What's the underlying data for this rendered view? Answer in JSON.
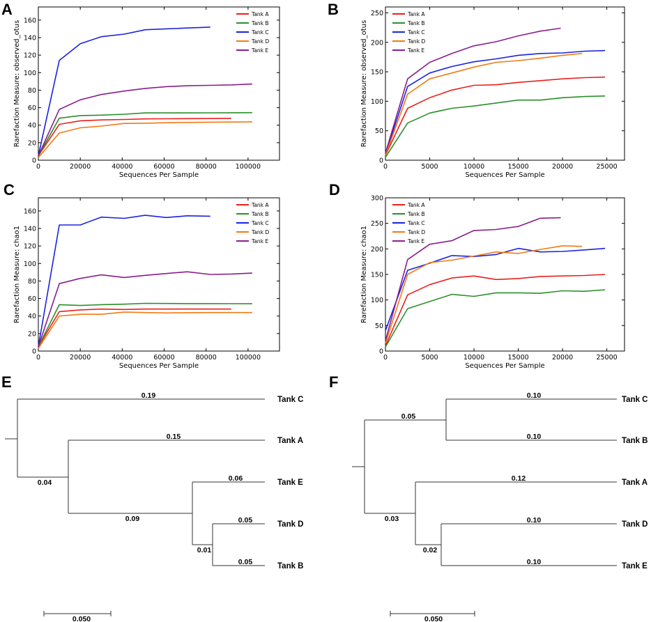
{
  "chart_data": [
    {
      "panel": "A",
      "type": "line",
      "xlabel": "Sequences Per Sample",
      "ylabel": "Rarefaction Measure: observed_otus",
      "xlim": [
        0,
        115000
      ],
      "ylim": [
        0,
        175
      ],
      "xticks": [
        0,
        20000,
        40000,
        60000,
        80000,
        100000
      ],
      "yticks": [
        0,
        20,
        40,
        60,
        80,
        100,
        120,
        140,
        160
      ],
      "legend_position": "top-right",
      "series": [
        {
          "name": "Tank A",
          "color": "#e8201c",
          "x": [
            0,
            10000,
            20000,
            30000,
            41000,
            51000,
            61000,
            71000,
            82000,
            92000
          ],
          "y": [
            5,
            41,
            45,
            46,
            46.5,
            47.2,
            47.3,
            47.5,
            47.6,
            47.8
          ]
        },
        {
          "name": "Tank B",
          "color": "#2a8f2a",
          "x": [
            0,
            10000,
            20000,
            30000,
            41000,
            51000,
            61000,
            71000,
            82000,
            92000,
            102000
          ],
          "y": [
            5,
            48,
            51,
            51.5,
            52.5,
            54,
            54,
            54,
            54.1,
            54.2,
            54.3
          ]
        },
        {
          "name": "Tank C",
          "color": "#1a22e0",
          "x": [
            0,
            10000,
            20000,
            30000,
            41000,
            51000,
            61000,
            71000,
            82000
          ],
          "y": [
            5,
            114,
            133,
            141,
            144,
            149,
            150,
            151,
            152
          ]
        },
        {
          "name": "Tank D",
          "color": "#f07a14",
          "x": [
            0,
            10000,
            20000,
            30000,
            41000,
            51000,
            61000,
            71000,
            82000,
            92000,
            102000
          ],
          "y": [
            3,
            31,
            37,
            39,
            42,
            42.2,
            42.8,
            43.1,
            43.4,
            43.6,
            43.8
          ]
        },
        {
          "name": "Tank E",
          "color": "#8a1d8c",
          "x": [
            0,
            10000,
            20000,
            30000,
            41000,
            51000,
            61000,
            71000,
            82000,
            92000,
            102000
          ],
          "y": [
            5,
            58,
            69,
            75,
            79,
            82,
            84,
            85,
            85.5,
            86,
            87
          ]
        }
      ]
    },
    {
      "panel": "B",
      "type": "line",
      "xlabel": "Sequences Per Sample",
      "ylabel": "Rarefaction Measure: observed_otus",
      "xlim": [
        0,
        27000
      ],
      "ylim": [
        0,
        260
      ],
      "xticks": [
        0,
        5000,
        10000,
        15000,
        20000,
        25000
      ],
      "yticks": [
        0,
        50,
        100,
        150,
        200,
        250
      ],
      "legend_position": "top-left",
      "series": [
        {
          "name": "Tank A",
          "color": "#e8201c",
          "x": [
            0,
            2500,
            5000,
            7500,
            10000,
            12500,
            15000,
            17500,
            20000,
            22500,
            24800
          ],
          "y": [
            8,
            88,
            106,
            119,
            127,
            128,
            132,
            135,
            138,
            140,
            141
          ]
        },
        {
          "name": "Tank B",
          "color": "#2a8f2a",
          "x": [
            0,
            2500,
            5000,
            7500,
            10000,
            12500,
            15000,
            17500,
            20000,
            22500,
            24800
          ],
          "y": [
            5,
            63,
            80,
            88,
            92,
            97,
            102,
            102,
            106,
            108,
            109
          ]
        },
        {
          "name": "Tank C",
          "color": "#1a22e0",
          "x": [
            0,
            2500,
            5000,
            7500,
            10000,
            12500,
            15000,
            17500,
            20000,
            22500,
            24800
          ],
          "y": [
            10,
            125,
            148,
            159,
            167,
            172,
            178,
            181,
            182,
            185,
            186
          ]
        },
        {
          "name": "Tank D",
          "color": "#f07a14",
          "x": [
            0,
            2500,
            5000,
            7500,
            10000,
            12500,
            15000,
            17500,
            20000,
            22200
          ],
          "y": [
            8,
            112,
            138,
            148,
            158,
            166,
            169,
            173,
            178,
            181
          ]
        },
        {
          "name": "Tank E",
          "color": "#8a1d8c",
          "x": [
            0,
            2500,
            5000,
            7500,
            10000,
            12500,
            15000,
            17500,
            19800
          ],
          "y": [
            12,
            138,
            166,
            181,
            194,
            201,
            211,
            219,
            224
          ]
        }
      ]
    },
    {
      "panel": "C",
      "type": "line",
      "xlabel": "Sequences Per Sample",
      "ylabel": "Rarefaction Measure: chao1",
      "xlim": [
        0,
        115000
      ],
      "ylim": [
        0,
        175
      ],
      "xticks": [
        0,
        20000,
        40000,
        60000,
        80000,
        100000
      ],
      "yticks": [
        0,
        20,
        40,
        60,
        80,
        100,
        120,
        140,
        160
      ],
      "legend_position": "top-right",
      "series": [
        {
          "name": "Tank A",
          "color": "#e8201c",
          "x": [
            0,
            10000,
            20000,
            30000,
            41000,
            51000,
            61000,
            71000,
            82000,
            92000
          ],
          "y": [
            5,
            45,
            47,
            48,
            47.5,
            48,
            48,
            48,
            48,
            48
          ]
        },
        {
          "name": "Tank B",
          "color": "#2a8f2a",
          "x": [
            0,
            10000,
            20000,
            30000,
            41000,
            51000,
            61000,
            71000,
            82000,
            92000,
            102000
          ],
          "y": [
            5,
            53,
            52,
            53,
            53.5,
            54.5,
            54.3,
            54.2,
            54.2,
            54.1,
            54
          ]
        },
        {
          "name": "Tank C",
          "color": "#1a22e0",
          "x": [
            0,
            10000,
            20000,
            30000,
            41000,
            51000,
            61000,
            71000,
            82000
          ],
          "y": [
            5,
            144,
            144,
            153,
            151.5,
            155,
            152.5,
            154.5,
            154
          ]
        },
        {
          "name": "Tank D",
          "color": "#f07a14",
          "x": [
            0,
            10000,
            20000,
            30000,
            41000,
            51000,
            61000,
            71000,
            82000,
            92000,
            102000
          ],
          "y": [
            3,
            40,
            42,
            42,
            44.5,
            44,
            43.5,
            43.8,
            44,
            44,
            44
          ]
        },
        {
          "name": "Tank E",
          "color": "#8a1d8c",
          "x": [
            0,
            10000,
            20000,
            30000,
            41000,
            51000,
            61000,
            71000,
            82000,
            92000,
            102000
          ],
          "y": [
            5,
            77,
            83,
            87,
            84,
            86.5,
            88.5,
            90.5,
            87.5,
            88,
            89
          ]
        }
      ]
    },
    {
      "panel": "D",
      "type": "line",
      "xlabel": "Sequences Per Sample",
      "ylabel": "Rarefaction Measure: chao1",
      "xlim": [
        0,
        27000
      ],
      "ylim": [
        0,
        300
      ],
      "xticks": [
        0,
        5000,
        10000,
        15000,
        20000,
        25000
      ],
      "yticks": [
        0,
        50,
        100,
        150,
        200,
        250,
        300
      ],
      "legend_position": "top-left",
      "series": [
        {
          "name": "Tank A",
          "color": "#e8201c",
          "x": [
            0,
            2500,
            5000,
            7500,
            10000,
            12500,
            15000,
            17500,
            20000,
            22500,
            24800
          ],
          "y": [
            10,
            110,
            130,
            143,
            147,
            140,
            142,
            146,
            147,
            148,
            150
          ]
        },
        {
          "name": "Tank B",
          "color": "#2a8f2a",
          "x": [
            0,
            2500,
            5000,
            7500,
            10000,
            12500,
            15000,
            17500,
            20000,
            22500,
            24800
          ],
          "y": [
            8,
            83,
            97,
            111,
            107,
            114,
            114,
            113,
            118,
            117,
            120
          ]
        },
        {
          "name": "Tank C",
          "color": "#1a22e0",
          "x": [
            0,
            2500,
            5000,
            7500,
            10000,
            12500,
            15000,
            17500,
            20000,
            22500,
            24800
          ],
          "y": [
            40,
            158,
            172,
            187,
            185,
            189,
            201,
            194,
            195,
            198,
            201
          ]
        },
        {
          "name": "Tank D",
          "color": "#f07a14",
          "x": [
            0,
            2500,
            5000,
            7500,
            10000,
            12500,
            15000,
            17500,
            20000,
            22200
          ],
          "y": [
            15,
            150,
            173,
            178,
            186,
            194,
            191,
            199,
            206,
            205
          ]
        },
        {
          "name": "Tank E",
          "color": "#8a1d8c",
          "x": [
            0,
            2500,
            5000,
            7500,
            10000,
            12500,
            15000,
            17500,
            19800
          ],
          "y": [
            20,
            179,
            209,
            216,
            236,
            238,
            244,
            260,
            261
          ]
        }
      ]
    },
    {
      "panel": "E",
      "type": "tree",
      "scale_label": "0.050",
      "scale_value": 0.05,
      "tips": [
        {
          "name": "Tank C",
          "branch_label": "0.19"
        },
        {
          "name": "Tank A",
          "branch_label": "0.15"
        },
        {
          "name": "Tank E",
          "branch_label": "0.06"
        },
        {
          "name": "Tank D",
          "branch_label": "0.05"
        },
        {
          "name": "Tank B",
          "branch_label": "0.05"
        }
      ],
      "internal_labels": [
        "0.04",
        "0.09",
        "0.01"
      ]
    },
    {
      "panel": "F",
      "type": "tree",
      "scale_label": "0.050",
      "scale_value": 0.05,
      "tips": [
        {
          "name": "Tank C",
          "branch_label": "0.10"
        },
        {
          "name": "Tank B",
          "branch_label": "0.10"
        },
        {
          "name": "Tank A",
          "branch_label": "0.12"
        },
        {
          "name": "Tank D",
          "branch_label": "0.10"
        },
        {
          "name": "Tank E",
          "branch_label": "0.10"
        }
      ],
      "internal_labels": [
        "0.05",
        "0.03",
        "0.02"
      ]
    }
  ]
}
